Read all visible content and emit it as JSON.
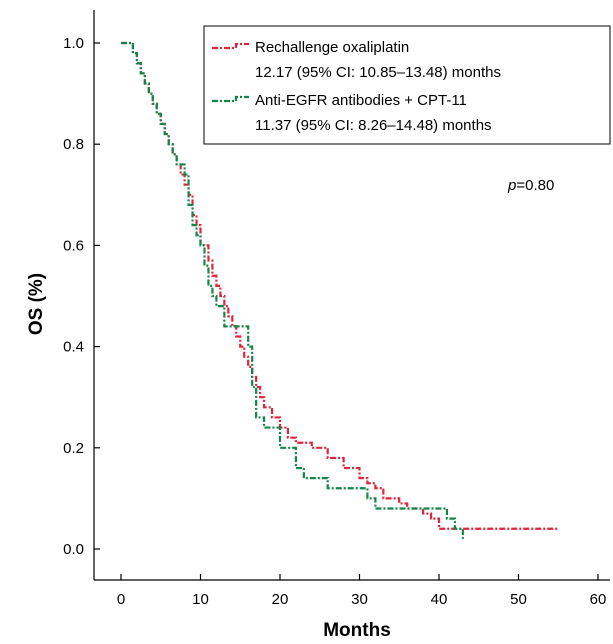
{
  "chart_data": {
    "type": "line",
    "title": "",
    "xlabel": "Months",
    "ylabel": "OS (%)",
    "xlim": [
      -2,
      60
    ],
    "ylim": [
      -0.04,
      1.04
    ],
    "xticks": [
      0,
      10,
      20,
      30,
      40,
      50,
      60
    ],
    "xtick_labels": [
      "0",
      "10",
      "20",
      "30",
      "40",
      "50",
      "60"
    ],
    "yticks": [
      0.0,
      0.2,
      0.4,
      0.6,
      0.8,
      1.0
    ],
    "ytick_labels": [
      "0.0",
      "0.2",
      "0.4",
      "0.6",
      "0.8",
      "1.0"
    ],
    "grid": false,
    "legend_position": "top-right",
    "annotation": {
      "prefix": "p",
      "suffix": "=0.80"
    },
    "series": [
      {
        "name": "Rechallenge oxaliplatin",
        "stats": "12.17 (95% CI: 10.85–13.48) months",
        "color": "#e0243c",
        "x": [
          0,
          1.5,
          2,
          2.5,
          3,
          3.5,
          4,
          4.5,
          5,
          5.5,
          6,
          6.5,
          7,
          7.5,
          8,
          8.5,
          9,
          9.5,
          10,
          10.5,
          11,
          11.5,
          12,
          12.5,
          13,
          13.5,
          14,
          14.5,
          15,
          15.5,
          16,
          16.5,
          17,
          17.5,
          18,
          19,
          20,
          21,
          22,
          24,
          26,
          28,
          30,
          31,
          32,
          33,
          35,
          36,
          38,
          39,
          40,
          55
        ],
        "y": [
          1.0,
          0.98,
          0.96,
          0.94,
          0.92,
          0.9,
          0.88,
          0.86,
          0.84,
          0.82,
          0.8,
          0.78,
          0.76,
          0.74,
          0.72,
          0.7,
          0.66,
          0.64,
          0.6,
          0.6,
          0.57,
          0.54,
          0.52,
          0.5,
          0.48,
          0.46,
          0.44,
          0.42,
          0.4,
          0.38,
          0.36,
          0.34,
          0.32,
          0.3,
          0.28,
          0.26,
          0.24,
          0.22,
          0.21,
          0.2,
          0.18,
          0.16,
          0.14,
          0.13,
          0.12,
          0.1,
          0.09,
          0.08,
          0.07,
          0.06,
          0.04,
          0.04
        ]
      },
      {
        "name": "Anti-EGFR antibodies + CPT-11",
        "stats": "11.37 (95% CI: 8.26–14.48) months",
        "color": "#13864a",
        "x": [
          0,
          1.5,
          2,
          2.5,
          3,
          3.5,
          4,
          4.5,
          5,
          5.5,
          6,
          6.5,
          7,
          8,
          8.5,
          9,
          9.5,
          10,
          10.5,
          11,
          11.5,
          12,
          13,
          14,
          15,
          16,
          16.5,
          17,
          18,
          20,
          22,
          23,
          26,
          31,
          32,
          40,
          41,
          42,
          43
        ],
        "y": [
          1.0,
          0.98,
          0.96,
          0.94,
          0.92,
          0.9,
          0.88,
          0.86,
          0.84,
          0.82,
          0.8,
          0.78,
          0.76,
          0.74,
          0.68,
          0.64,
          0.62,
          0.6,
          0.56,
          0.52,
          0.5,
          0.48,
          0.44,
          0.44,
          0.44,
          0.4,
          0.32,
          0.26,
          0.24,
          0.2,
          0.16,
          0.14,
          0.12,
          0.1,
          0.08,
          0.08,
          0.06,
          0.04,
          0.02
        ]
      }
    ]
  }
}
